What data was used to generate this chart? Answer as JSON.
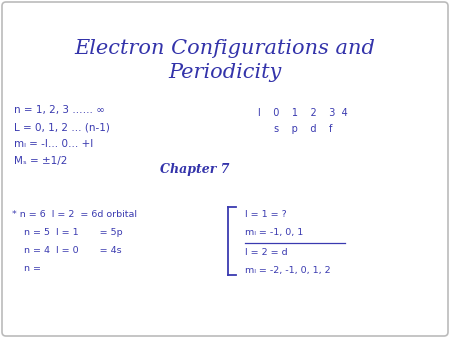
{
  "title_line1": "Electron Configurations and",
  "title_line2": "Periodicity",
  "title_color": "#3333aa",
  "title_fontsize": 15,
  "chapter_text": "Chapter 7",
  "chapter_color": "#3333aa",
  "chapter_fontsize": 9,
  "handwriting_color": "#3a3ab0",
  "bg_color": "#ffffff",
  "border_color": "#bbbbbb",
  "note1": "n = 1, 2, 3 …… ∞",
  "note2": "L = 0, 1, 2 … (n-1)",
  "note3": "mₗ = -l… 0… +l",
  "note4": "Mₛ = ±1/2",
  "tbl_row1": "l    0    1    2    3  4",
  "tbl_row2": "s    p    d    f",
  "bl1": "* n = 6  l = 2  = 6d orbital",
  "bl2": "    n = 5  l = 1       = 5p",
  "bl3": "    n = 4  l = 0       = 4s",
  "bl4": "    n =",
  "br1": "l = 1 = ?",
  "br2": "mₗ = -1, 0, 1",
  "br3": "l = 2 = d",
  "br4": "mₗ = -2, -1, 0, 1, 2"
}
